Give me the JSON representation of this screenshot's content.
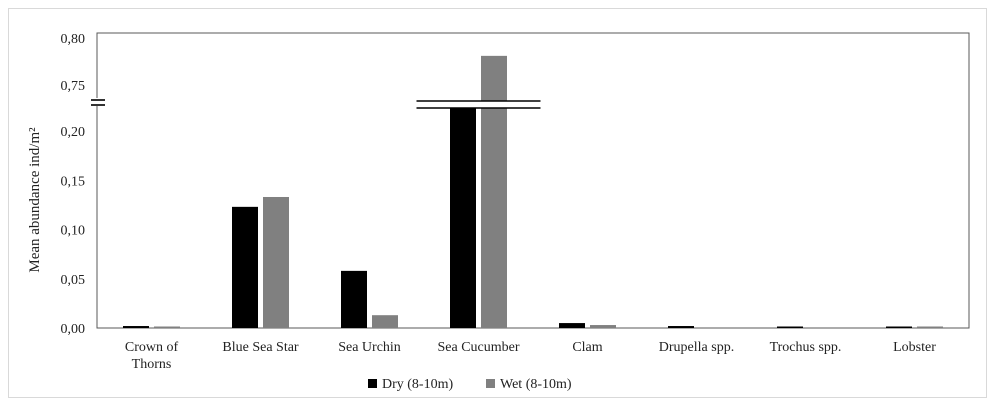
{
  "chart_data": {
    "type": "bar",
    "ylabel": "Mean abundance  ind/m²",
    "categories": [
      "Crown of Thorns",
      "Blue Sea Star",
      "Sea Urchin",
      "Sea Cucumber",
      "Clam",
      "Drupella spp.",
      "Trochus spp.",
      "Lobster"
    ],
    "category_lines": [
      [
        "Crown of",
        "Thorns"
      ],
      [
        "Blue Sea Star"
      ],
      [
        "Sea Urchin"
      ],
      [
        "Sea Cucumber"
      ],
      [
        "Clam"
      ],
      [
        "Drupella spp."
      ],
      [
        "Trochus spp."
      ],
      [
        "Lobster"
      ]
    ],
    "series": [
      {
        "name": "Dry (8-10m)",
        "color": "#000000",
        "values": [
          0.002,
          0.123,
          0.058,
          0.744,
          0.005,
          0.002,
          0.001,
          0.001
        ]
      },
      {
        "name": "Wet (8-10m)",
        "color": "#808080",
        "values": [
          0.001,
          0.133,
          0.013,
          0.781,
          0.003,
          0.0,
          0.0,
          0.001
        ]
      }
    ],
    "y_axis_break": {
      "lower_range": [
        0,
        0.2
      ],
      "upper_range": [
        0.75,
        0.8
      ]
    },
    "y_ticks_lower": [
      "0,00",
      "0,05",
      "0,10",
      "0,15",
      "0,20"
    ],
    "y_ticks_upper": [
      "0,75",
      "0,80"
    ],
    "legend_position": "bottom",
    "grid": false
  }
}
